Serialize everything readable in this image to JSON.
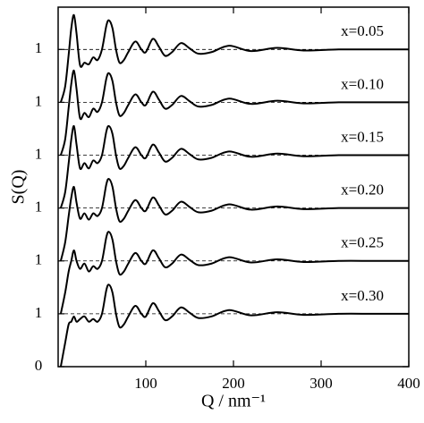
{
  "chart_data": {
    "type": "line",
    "xlabel": "Q / nm⁻¹",
    "ylabel": "S(Q)",
    "xlim": [
      0,
      400
    ],
    "ylim": [
      0,
      6.8
    ],
    "xticks": [
      100,
      200,
      300,
      400
    ],
    "yticks": [
      0,
      1,
      {
        "value": 2,
        "label": "1"
      },
      {
        "value": 3,
        "label": "1"
      },
      {
        "value": 4,
        "label": "1"
      },
      {
        "value": 5,
        "label": "1"
      },
      {
        "value": 6,
        "label": "1"
      }
    ],
    "grid": true,
    "x": [
      3,
      8,
      12,
      15,
      18,
      21,
      25,
      30,
      35,
      40,
      45,
      50,
      55,
      58,
      62,
      66,
      70,
      75,
      80,
      88,
      95,
      100,
      108,
      115,
      122,
      130,
      140,
      150,
      160,
      175,
      195,
      220,
      250,
      280,
      320,
      360,
      400
    ],
    "series": [
      {
        "name": "x=0.05",
        "color": "#000000",
        "values": [
          5,
          5.3,
          5.9,
          6.4,
          6.65,
          6.3,
          5.7,
          5.75,
          5.72,
          5.85,
          5.8,
          6,
          6.45,
          6.55,
          6.4,
          6,
          5.75,
          5.8,
          5.95,
          6.15,
          6,
          5.95,
          6.2,
          6.05,
          5.88,
          5.95,
          6.12,
          6.02,
          5.92,
          5.95,
          6.07,
          5.97,
          6.03,
          5.98,
          6,
          6,
          6
        ]
      },
      {
        "name": "x=0.10",
        "color": "#000000",
        "values": [
          4,
          4.3,
          4.9,
          5.35,
          5.6,
          5.25,
          4.7,
          4.8,
          4.72,
          4.88,
          4.82,
          5,
          5.45,
          5.55,
          5.4,
          5,
          4.75,
          4.8,
          4.95,
          5.15,
          5,
          4.95,
          5.2,
          5.05,
          4.88,
          4.95,
          5.12,
          5.02,
          4.92,
          4.95,
          5.07,
          4.97,
          5.03,
          4.98,
          5,
          5,
          5
        ]
      },
      {
        "name": "x=0.15",
        "color": "#000000",
        "values": [
          3,
          3.3,
          3.85,
          4.3,
          4.55,
          4.2,
          3.75,
          3.85,
          3.75,
          3.9,
          3.85,
          4,
          4.45,
          4.55,
          4.4,
          4,
          3.75,
          3.8,
          3.95,
          4.15,
          4,
          3.95,
          4.2,
          4.05,
          3.88,
          3.95,
          4.12,
          4.02,
          3.92,
          3.95,
          4.07,
          3.97,
          4.03,
          3.98,
          4,
          4,
          4
        ]
      },
      {
        "name": "x=0.20",
        "color": "#000000",
        "values": [
          2,
          2.35,
          2.85,
          3.2,
          3.4,
          3.1,
          2.8,
          2.9,
          2.78,
          2.9,
          2.85,
          3,
          3.45,
          3.55,
          3.4,
          3,
          2.75,
          2.8,
          2.95,
          3.15,
          3,
          2.95,
          3.2,
          3.05,
          2.88,
          2.95,
          3.12,
          3.02,
          2.92,
          2.95,
          3.07,
          2.97,
          3.03,
          2.98,
          3,
          3,
          3
        ]
      },
      {
        "name": "x=0.25",
        "color": "#000000",
        "values": [
          1,
          1.4,
          1.8,
          2,
          2.2,
          2,
          1.85,
          1.95,
          1.8,
          1.9,
          1.85,
          2,
          2.45,
          2.55,
          2.4,
          2,
          1.75,
          1.8,
          1.95,
          2.15,
          2,
          1.95,
          2.2,
          2.05,
          1.88,
          1.95,
          2.12,
          2.02,
          1.92,
          1.95,
          2.07,
          1.97,
          2.03,
          1.98,
          2,
          2,
          2
        ]
      },
      {
        "name": "x=0.30",
        "color": "#000000",
        "values": [
          0,
          0.45,
          0.8,
          0.85,
          0.95,
          0.85,
          0.9,
          0.95,
          0.85,
          0.9,
          0.85,
          1,
          1.45,
          1.55,
          1.4,
          1,
          0.75,
          0.8,
          0.95,
          1.15,
          1,
          0.95,
          1.2,
          1.05,
          0.88,
          0.95,
          1.12,
          1.02,
          0.92,
          0.95,
          1.07,
          0.97,
          1.03,
          0.98,
          1,
          1,
          1
        ]
      }
    ]
  }
}
